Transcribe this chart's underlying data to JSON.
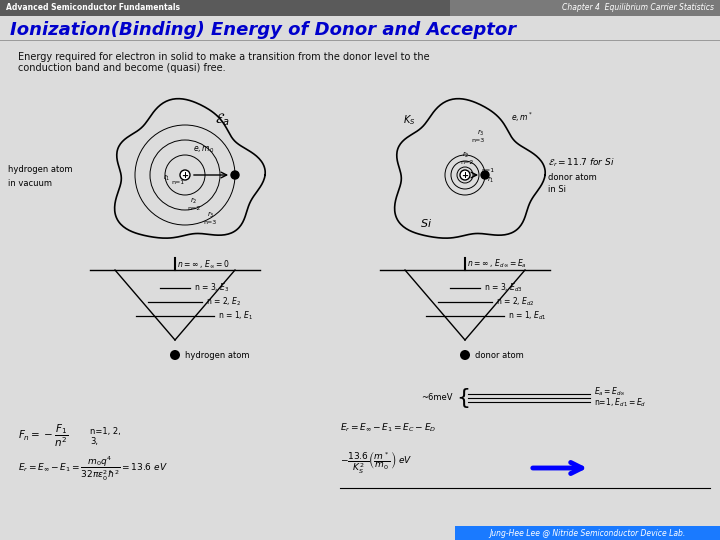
{
  "title_header_left": "Advanced Semiconductor Fundamentals",
  "title_header_right": "Chapter 4  Equilibrium Carrier Statistics",
  "header_left_bg": "#5a5a5a",
  "header_right_bg": "#7a7a7a",
  "header_text_color": "#ffffff",
  "main_title": "Ionization(Binding) Energy of Donor and Acceptor",
  "main_title_color": "#0000cc",
  "body_line1": "Energy required for electron in solid to make a transition from the donor level to the",
  "body_line2": "conduction band and become (quasi) free.",
  "footer_text": "Jung-Hee Lee @ Nitride Semiconductor Device Lab.",
  "footer_bg": "#1a7aff",
  "footer_text_color": "#ffffff",
  "bg_color": "#d4d4d4",
  "content_bg": "#e8e8e8",
  "slide_bg": "#dcdcdc"
}
